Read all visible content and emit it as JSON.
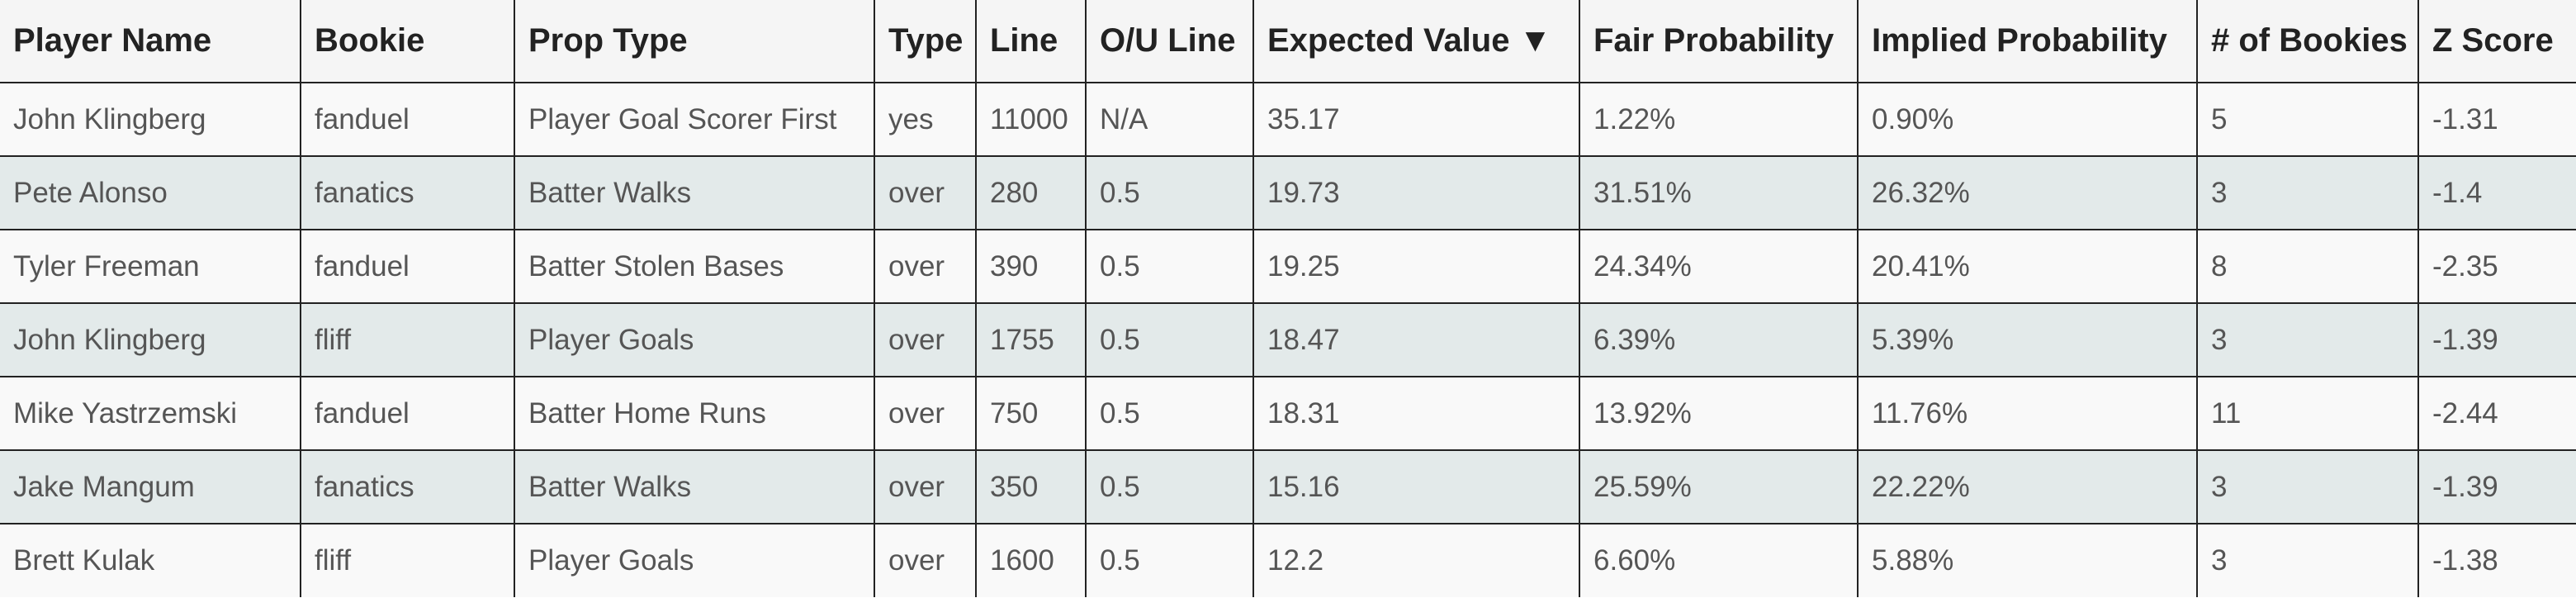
{
  "table": {
    "columns": [
      "Player Name",
      "Bookie",
      "Prop Type",
      "Type",
      "Line",
      "O/U Line",
      "Expected Value ▼",
      "Fair Probability",
      "Implied Probability",
      "# of Bookies",
      "Z Score"
    ],
    "sorted_column": "Expected Value",
    "sort_direction": "descending",
    "rows": [
      [
        "John Klingberg",
        "fanduel",
        "Player Goal Scorer First",
        "yes",
        "11000",
        "N/A",
        "35.17",
        "1.22%",
        "0.90%",
        "5",
        "-1.31"
      ],
      [
        "Pete Alonso",
        "fanatics",
        "Batter Walks",
        "over",
        "280",
        "0.5",
        "19.73",
        "31.51%",
        "26.32%",
        "3",
        "-1.4"
      ],
      [
        "Tyler Freeman",
        "fanduel",
        "Batter Stolen Bases",
        "over",
        "390",
        "0.5",
        "19.25",
        "24.34%",
        "20.41%",
        "8",
        "-2.35"
      ],
      [
        "John Klingberg",
        "fliff",
        "Player Goals",
        "over",
        "1755",
        "0.5",
        "18.47",
        "6.39%",
        "5.39%",
        "3",
        "-1.39"
      ],
      [
        "Mike Yastrzemski",
        "fanduel",
        "Batter Home Runs",
        "over",
        "750",
        "0.5",
        "18.31",
        "13.92%",
        "11.76%",
        "11",
        "-2.44"
      ],
      [
        "Jake Mangum",
        "fanatics",
        "Batter Walks",
        "over",
        "350",
        "0.5",
        "15.16",
        "25.59%",
        "22.22%",
        "3",
        "-1.39"
      ],
      [
        "Brett Kulak",
        "fliff",
        "Player Goals",
        "over",
        "1600",
        "0.5",
        "12.2",
        "6.60%",
        "5.88%",
        "3",
        "-1.38"
      ]
    ]
  },
  "colors": {
    "header_background": "#f5f5f5",
    "row_background": "#f9f9f9",
    "row_background_alt": "#e3eaea",
    "border": "#222222",
    "text": "#555555",
    "header_text": "#222222"
  }
}
